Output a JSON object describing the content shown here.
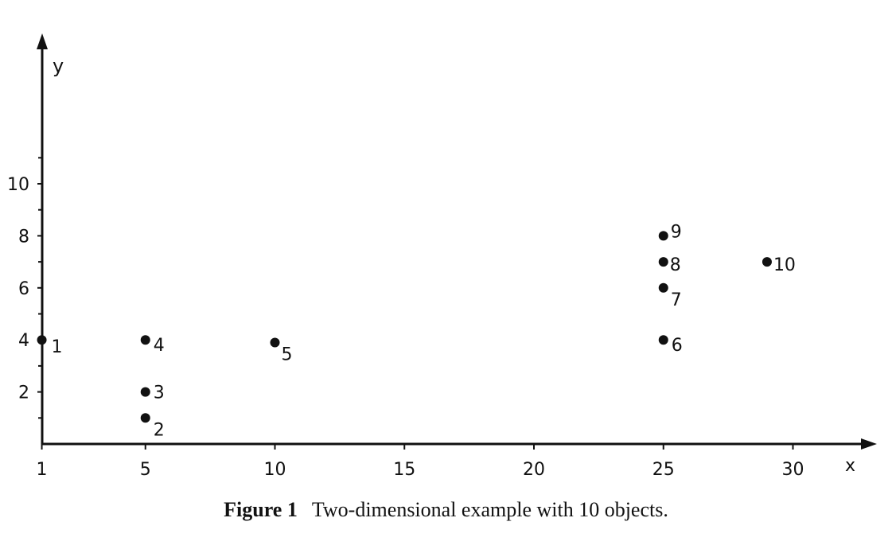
{
  "chart_data": {
    "type": "scatter",
    "title": "",
    "xlabel": "x",
    "ylabel": "y",
    "xlim": [
      0,
      31
    ],
    "ylim": [
      0,
      15
    ],
    "grid": false,
    "legend": "none",
    "x_ticks": [
      1,
      5,
      10,
      15,
      20,
      25,
      30
    ],
    "x_tick_labels": [
      "1",
      "5",
      "10",
      "15",
      "20",
      "25",
      "30"
    ],
    "y_ticks": [
      2,
      4,
      6,
      8,
      10
    ],
    "y_tick_labels": [
      "2",
      "4",
      "6",
      "8",
      "10"
    ],
    "y_minor_ticks": [
      1,
      3,
      5,
      7,
      9,
      11
    ],
    "points": [
      {
        "label": "1",
        "x": 1,
        "y": 4
      },
      {
        "label": "2",
        "x": 5,
        "y": 1
      },
      {
        "label": "3",
        "x": 5,
        "y": 2
      },
      {
        "label": "4",
        "x": 5,
        "y": 4
      },
      {
        "label": "5",
        "x": 10,
        "y": 3.9
      },
      {
        "label": "6",
        "x": 25,
        "y": 4
      },
      {
        "label": "7",
        "x": 25,
        "y": 6
      },
      {
        "label": "8",
        "x": 25,
        "y": 7
      },
      {
        "label": "9",
        "x": 25,
        "y": 8
      },
      {
        "label": "10",
        "x": 29,
        "y": 7
      }
    ]
  },
  "caption": {
    "label": "Figure 1",
    "text": "Two-dimensional example with 10 objects."
  }
}
